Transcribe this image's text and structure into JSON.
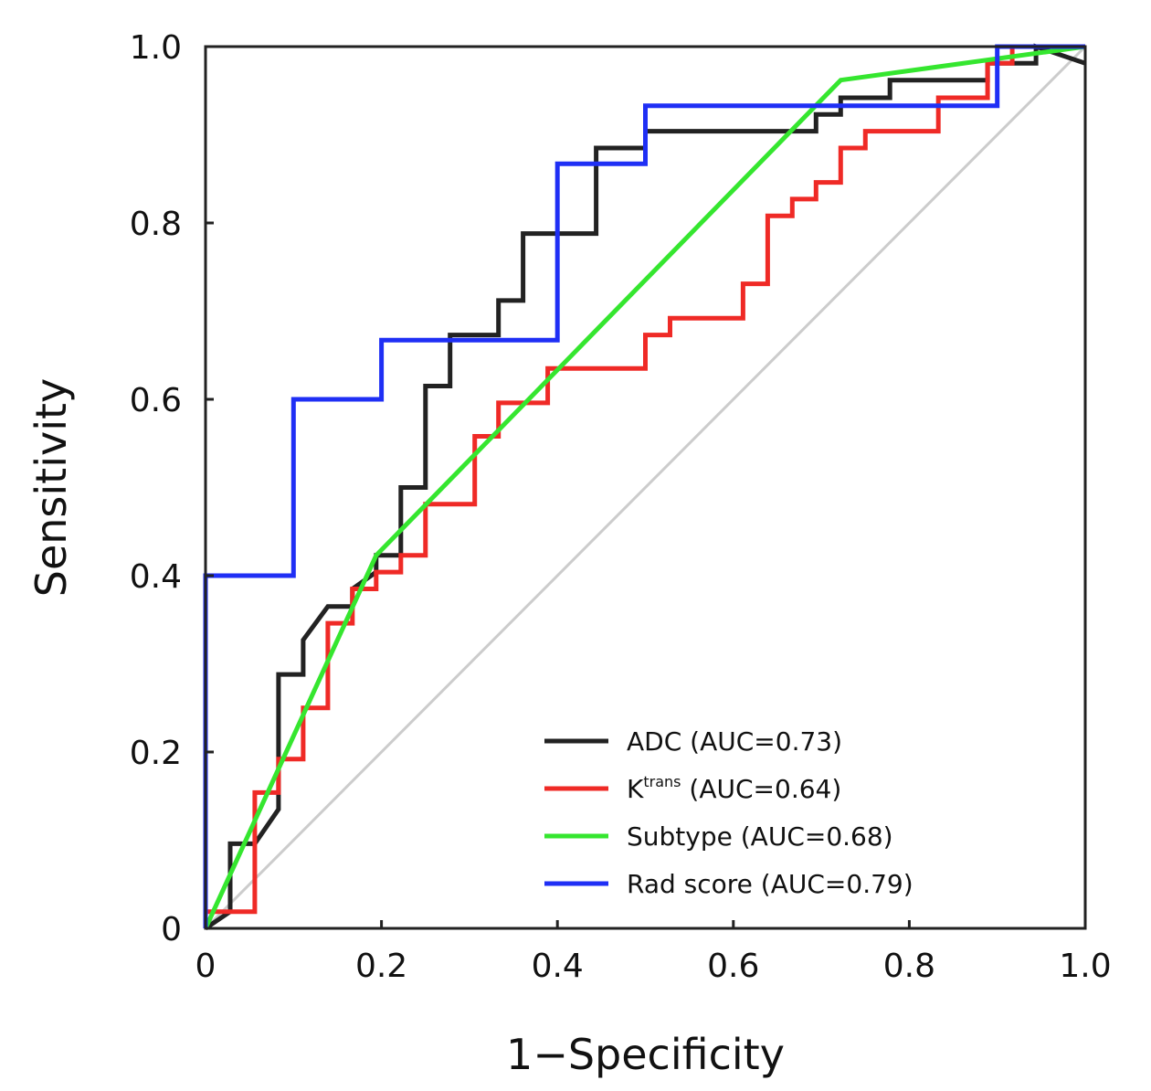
{
  "chart_data": {
    "type": "line",
    "title": "",
    "xlabel": "1−Specificity",
    "ylabel": "Sensitivity",
    "xlim": [
      0,
      1
    ],
    "ylim": [
      0,
      1
    ],
    "grid": false,
    "legend_position": "bottom-right",
    "x_ticks": [
      "0",
      "0.2",
      "0.4",
      "0.6",
      "0.8",
      "1.0"
    ],
    "y_ticks": [
      "0",
      "0.2",
      "0.4",
      "0.6",
      "0.8",
      "1.0"
    ],
    "reference_line": {
      "x": [
        0,
        1
      ],
      "y": [
        0,
        1
      ],
      "color": "#cccccc"
    },
    "series": [
      {
        "name": "ADC (AUC=0.73)",
        "label_main": "ADC (AUC=0.73)",
        "label_sup": "",
        "label_rest": "",
        "color": "#222222",
        "x": [
          0,
          0.028,
          0.028,
          0.056,
          0.083,
          0.083,
          0.111,
          0.111,
          0.139,
          0.139,
          0.167,
          0.167,
          0.194,
          0.194,
          0.222,
          0.222,
          0.25,
          0.25,
          0.278,
          0.278,
          0.306,
          0.333,
          0.333,
          0.361,
          0.361,
          0.389,
          0.444,
          0.444,
          0.5,
          0.5,
          0.556,
          0.694,
          0.694,
          0.722,
          0.722,
          0.778,
          0.778,
          0.833,
          0.889,
          0.889,
          0.944,
          0.944,
          1.0
        ],
        "y": [
          0,
          0.019,
          0.096,
          0.096,
          0.135,
          0.288,
          0.288,
          0.327,
          0.365,
          0.365,
          0.365,
          0.385,
          0.404,
          0.423,
          0.423,
          0.5,
          0.5,
          0.615,
          0.615,
          0.673,
          0.673,
          0.673,
          0.712,
          0.712,
          0.788,
          0.788,
          0.788,
          0.885,
          0.885,
          0.904,
          0.904,
          0.904,
          0.923,
          0.923,
          0.942,
          0.942,
          0.962,
          0.962,
          0.962,
          0.981,
          0.981,
          1.0,
          0.981
        ]
      },
      {
        "name": "Ktrans (AUC=0.64)",
        "label_main": "K",
        "label_sup": "trans",
        "label_rest": " (AUC=0.64)",
        "color": "#ef2a26",
        "x": [
          0,
          0.056,
          0.056,
          0.083,
          0.083,
          0.111,
          0.111,
          0.139,
          0.139,
          0.167,
          0.167,
          0.194,
          0.194,
          0.222,
          0.222,
          0.25,
          0.25,
          0.306,
          0.306,
          0.333,
          0.333,
          0.389,
          0.389,
          0.5,
          0.5,
          0.528,
          0.528,
          0.611,
          0.611,
          0.639,
          0.639,
          0.667,
          0.667,
          0.694,
          0.694,
          0.722,
          0.722,
          0.75,
          0.75,
          0.833,
          0.833,
          0.889,
          0.889,
          0.917,
          0.917
        ],
        "y": [
          0.019,
          0.019,
          0.154,
          0.154,
          0.192,
          0.192,
          0.25,
          0.25,
          0.346,
          0.346,
          0.385,
          0.385,
          0.404,
          0.404,
          0.423,
          0.423,
          0.481,
          0.481,
          0.558,
          0.558,
          0.596,
          0.596,
          0.635,
          0.635,
          0.673,
          0.673,
          0.692,
          0.692,
          0.731,
          0.731,
          0.808,
          0.808,
          0.827,
          0.827,
          0.846,
          0.846,
          0.885,
          0.885,
          0.904,
          0.904,
          0.942,
          0.942,
          0.981,
          0.981,
          1.0
        ]
      },
      {
        "name": "Subtype (AUC=0.68)",
        "label_main": "Subtype (AUC=0.68)",
        "label_sup": "",
        "label_rest": "",
        "color": "#35e62f",
        "x": [
          0,
          0.194,
          0.722,
          1.0
        ],
        "y": [
          0,
          0.423,
          0.962,
          1.0
        ]
      },
      {
        "name": "Rad score (AUC=0.79)",
        "label_main": "Rad score (AUC=0.79)",
        "label_sup": "",
        "label_rest": "",
        "color": "#1f2ff5",
        "x": [
          0,
          0,
          0.1,
          0.1,
          0.2,
          0.2,
          0.4,
          0.4,
          0.5,
          0.5,
          0.9,
          0.9,
          1.0
        ],
        "y": [
          0,
          0.4,
          0.4,
          0.6,
          0.6,
          0.667,
          0.667,
          0.867,
          0.867,
          0.933,
          0.933,
          1.0,
          1.0
        ]
      }
    ]
  }
}
